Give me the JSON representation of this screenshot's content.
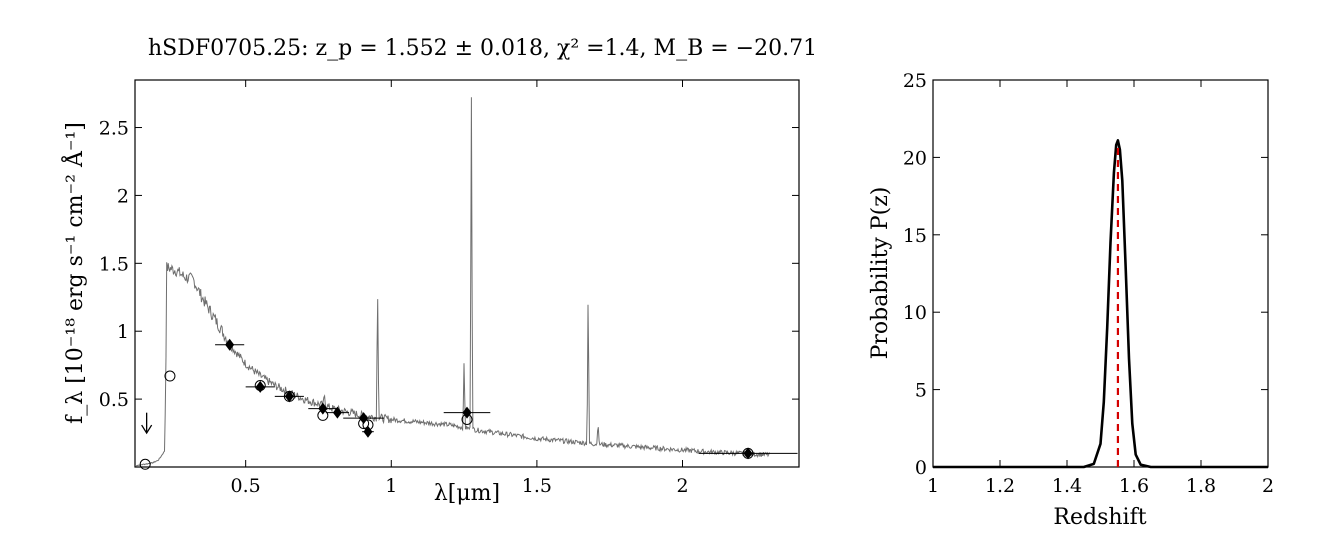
{
  "chart_data": [
    {
      "type": "line",
      "title": "hSDF0705.25: z_p = 1.552 ± 0.018, χ² =1.4, M_B = −20.71",
      "xlabel": "λ[μm]",
      "ylabel": "f_λ [10⁻¹⁸ erg s⁻¹ cm⁻² Å⁻¹]",
      "xlim": [
        0.12,
        2.4
      ],
      "ylim": [
        0,
        2.85
      ],
      "xticks": [
        "0.5",
        "1",
        "1.5",
        "2"
      ],
      "xtick_values": [
        0.5,
        1,
        1.5,
        2
      ],
      "yticks": [
        "0.5",
        "1",
        "1.5",
        "2",
        "2.5"
      ],
      "ytick_values": [
        0.5,
        1,
        1.5,
        2,
        2.5
      ],
      "grid": false,
      "colors": {
        "spectrum": "#6f6f6f",
        "points": "#000000"
      },
      "series": [
        {
          "kind": "template spectrum",
          "continuum": [
            [
              0.12,
              0.01
            ],
            [
              0.15,
              0.02
            ],
            [
              0.18,
              0.03
            ],
            [
              0.2,
              0.05
            ],
            [
              0.21,
              0.08
            ],
            [
              0.222,
              0.12
            ],
            [
              0.226,
              0.7
            ],
            [
              0.228,
              1.47
            ],
            [
              0.26,
              1.45
            ],
            [
              0.29,
              1.4
            ],
            [
              0.32,
              1.38
            ],
            [
              0.35,
              1.25
            ],
            [
              0.4,
              1.07
            ],
            [
              0.45,
              0.89
            ],
            [
              0.5,
              0.76
            ],
            [
              0.55,
              0.67
            ],
            [
              0.6,
              0.6
            ],
            [
              0.65,
              0.55
            ],
            [
              0.7,
              0.5
            ],
            [
              0.8,
              0.43
            ],
            [
              0.9,
              0.38
            ],
            [
              1.0,
              0.35
            ],
            [
              1.1,
              0.33
            ],
            [
              1.2,
              0.31
            ],
            [
              1.3,
              0.27
            ],
            [
              1.5,
              0.21
            ],
            [
              1.7,
              0.17
            ],
            [
              1.9,
              0.14
            ],
            [
              2.1,
              0.11
            ],
            [
              2.3,
              0.09
            ]
          ],
          "emission_lines": [
            {
              "x": 0.953,
              "peak": 1.35
            },
            {
              "x": 1.25,
              "peak": 0.78
            },
            {
              "x": 1.275,
              "peak": 2.85
            },
            {
              "x": 1.676,
              "peak": 1.35
            },
            {
              "x": 1.71,
              "peak": 0.33
            },
            {
              "x": 0.77,
              "peak": 0.55
            }
          ]
        },
        {
          "kind": "observed",
          "marker": "filled diamond",
          "points": [
            {
              "x": 0.445,
              "y": 0.9,
              "xerr": 0.05
            },
            {
              "x": 0.55,
              "y": 0.59,
              "xerr": 0.05
            },
            {
              "x": 0.65,
              "y": 0.52,
              "xerr": 0.05
            },
            {
              "x": 0.765,
              "y": 0.43,
              "xerr": 0.05
            },
            {
              "x": 0.815,
              "y": 0.4,
              "xerr": 0.04
            },
            {
              "x": 0.905,
              "y": 0.36,
              "xerr": 0.07
            },
            {
              "x": 0.92,
              "y": 0.26,
              "xerr": 0.02
            },
            {
              "x": 1.26,
              "y": 0.4,
              "xerr": 0.08
            },
            {
              "x": 2.225,
              "y": 0.1,
              "xerr": 0.17
            }
          ]
        },
        {
          "kind": "model",
          "marker": "open circle",
          "points": [
            {
              "x": 0.155,
              "y": 0.02
            },
            {
              "x": 0.24,
              "y": 0.67
            },
            {
              "x": 0.55,
              "y": 0.6
            },
            {
              "x": 0.65,
              "y": 0.52
            },
            {
              "x": 0.765,
              "y": 0.38
            },
            {
              "x": 0.905,
              "y": 0.32
            },
            {
              "x": 0.92,
              "y": 0.31
            },
            {
              "x": 1.26,
              "y": 0.35
            },
            {
              "x": 2.225,
              "y": 0.1
            }
          ]
        },
        {
          "kind": "upper limit",
          "marker": "down arrow",
          "points": [
            {
              "x": 0.16,
              "y_top": 0.4,
              "y_bottom": 0.25
            }
          ]
        }
      ]
    },
    {
      "type": "line",
      "title": "",
      "xlabel": "Redshift",
      "ylabel": "Probability P(z)",
      "xlim": [
        1,
        2
      ],
      "ylim": [
        0,
        25
      ],
      "xticks": [
        "1",
        "1.2",
        "1.4",
        "1.6",
        "1.8",
        "2"
      ],
      "xtick_values": [
        1,
        1.2,
        1.4,
        1.6,
        1.8,
        2
      ],
      "yticks": [
        "0",
        "5",
        "10",
        "15",
        "20",
        "25"
      ],
      "ytick_values": [
        0,
        5,
        10,
        15,
        20,
        25
      ],
      "grid": false,
      "colors": {
        "pdf": "#000000",
        "z_best": "#d40000"
      },
      "series": [
        {
          "kind": "P(z)",
          "points": [
            [
              1.0,
              0
            ],
            [
              1.45,
              0
            ],
            [
              1.48,
              0.2
            ],
            [
              1.5,
              1.5
            ],
            [
              1.51,
              4.2
            ],
            [
              1.52,
              9.0
            ],
            [
              1.53,
              14.5
            ],
            [
              1.54,
              19.0
            ],
            [
              1.547,
              20.8
            ],
            [
              1.552,
              21.1
            ],
            [
              1.558,
              20.5
            ],
            [
              1.565,
              18.5
            ],
            [
              1.575,
              13.0
            ],
            [
              1.585,
              7.0
            ],
            [
              1.595,
              2.8
            ],
            [
              1.605,
              0.8
            ],
            [
              1.62,
              0.15
            ],
            [
              1.65,
              0
            ],
            [
              2.0,
              0
            ]
          ]
        },
        {
          "kind": "z_best",
          "x": 1.552,
          "y_top": 20.8,
          "style": "dashed"
        }
      ]
    }
  ]
}
